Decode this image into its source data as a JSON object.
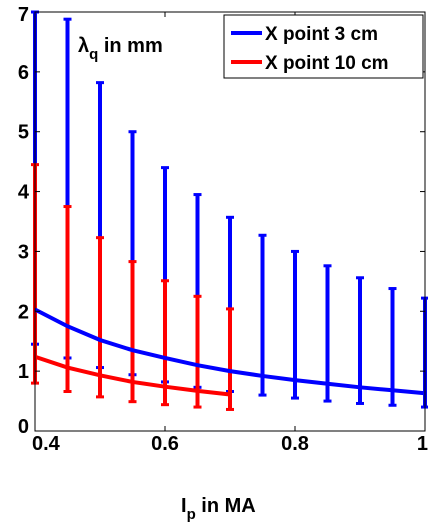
{
  "chart_data": {
    "type": "line",
    "title": "",
    "xlabel": {
      "main": "I",
      "sub": "p",
      "rest": " in MA"
    },
    "ylabel": {
      "greek": "λ",
      "sub": "q",
      "rest": " in mm"
    },
    "xlim": [
      0.4,
      1.0
    ],
    "ylim": [
      0,
      7
    ],
    "grid": false,
    "legend_position": "top-right",
    "x_ticks": [
      {
        "value": 0.4,
        "label": "0.4"
      },
      {
        "value": 0.6,
        "label": "0.6"
      },
      {
        "value": 0.8,
        "label": "0.8"
      },
      {
        "value": 1.0,
        "label": "1"
      }
    ],
    "y_ticks": [
      {
        "value": 0,
        "label": "0"
      },
      {
        "value": 1,
        "label": "1"
      },
      {
        "value": 2,
        "label": "2"
      },
      {
        "value": 3,
        "label": "3"
      },
      {
        "value": 4,
        "label": "4"
      },
      {
        "value": 5,
        "label": "5"
      },
      {
        "value": 6,
        "label": "6"
      },
      {
        "value": 7,
        "label": "7"
      }
    ],
    "series": [
      {
        "name": "X point 3 cm",
        "color": "#0000ff",
        "x": [
          0.4,
          0.45,
          0.5,
          0.55,
          0.6,
          0.65,
          0.7,
          0.75,
          0.8,
          0.85,
          0.9,
          0.95,
          1.0
        ],
        "y": [
          2.03,
          1.75,
          1.52,
          1.35,
          1.22,
          1.1,
          1.0,
          0.92,
          0.85,
          0.79,
          0.73,
          0.68,
          0.63
        ],
        "error_low": [
          1.45,
          1.22,
          1.06,
          0.94,
          0.82,
          0.73,
          0.66,
          0.6,
          0.55,
          0.5,
          0.46,
          0.43,
          0.4
        ],
        "error_high": [
          7.0,
          6.88,
          5.82,
          5.0,
          4.4,
          3.95,
          3.57,
          3.27,
          3.0,
          2.76,
          2.56,
          2.38,
          2.22
        ]
      },
      {
        "name": "X point 10 cm",
        "color": "#ff0000",
        "x": [
          0.4,
          0.45,
          0.5,
          0.55,
          0.6,
          0.65,
          0.7
        ],
        "y": [
          1.24,
          1.06,
          0.93,
          0.82,
          0.74,
          0.67,
          0.61
        ],
        "error_low": [
          0.8,
          0.66,
          0.57,
          0.49,
          0.44,
          0.4,
          0.36
        ],
        "error_high": [
          4.45,
          3.75,
          3.23,
          2.83,
          2.51,
          2.25,
          2.04
        ]
      }
    ]
  }
}
